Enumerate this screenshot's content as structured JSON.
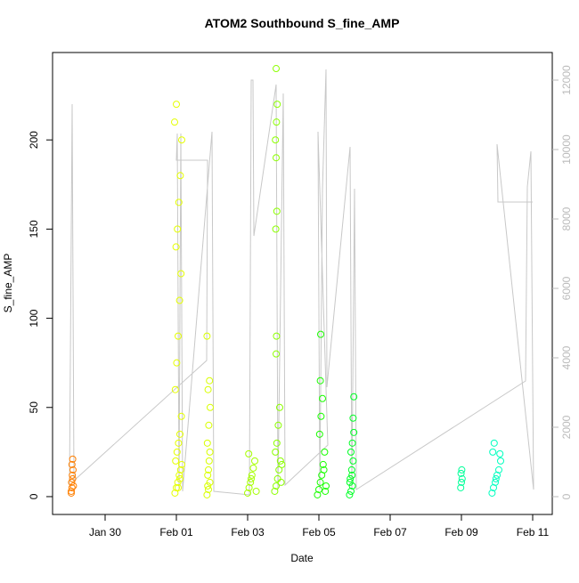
{
  "chart_data": {
    "type": "scatter",
    "title": "ATOM2 Southbound S_fine_AMP",
    "x_label": "Date",
    "y_label": "S_fine_AMP",
    "xlim": [
      28.525,
      42.55
    ],
    "ylim": [
      -10,
      249
    ],
    "y2lim": [
      -513,
      12795
    ],
    "xticks": [
      {
        "value": 30,
        "label": "Jan 30"
      },
      {
        "value": 32,
        "label": "Feb 01"
      },
      {
        "value": 34,
        "label": "Feb 03"
      },
      {
        "value": 36,
        "label": "Feb 05"
      },
      {
        "value": 38,
        "label": "Feb 07"
      },
      {
        "value": 40,
        "label": "Feb 09"
      },
      {
        "value": 42,
        "label": "Feb 11"
      }
    ],
    "yticks": [
      0,
      50,
      100,
      150,
      200
    ],
    "y2ticks": [
      0,
      2000,
      4000,
      6000,
      8000,
      10000,
      12000
    ],
    "grid": false,
    "series": [
      {
        "color": "#ff7f00",
        "x": [
          29.05,
          29.07,
          29.06,
          29.09,
          29.08,
          29.1,
          29.07,
          29.09,
          29.05,
          29.11
        ],
        "values": [
          3,
          5,
          8,
          10,
          12,
          15,
          18,
          21,
          2,
          6
        ]
      },
      {
        "color": "#e5ff00",
        "x": [
          31.96,
          32.0,
          32.04,
          32.08,
          32.12,
          31.98,
          32.02,
          32.06,
          32.1,
          32.14,
          31.97,
          32.01,
          32.05,
          32.09,
          32.13,
          31.99,
          32.03,
          32.07,
          32.11,
          32.15,
          31.95,
          32.0,
          32.05,
          32.1,
          32.15
        ],
        "values": [
          2,
          5,
          8,
          12,
          15,
          20,
          25,
          30,
          35,
          45,
          60,
          75,
          90,
          110,
          125,
          140,
          150,
          165,
          180,
          200,
          210,
          220,
          5,
          10,
          18
        ]
      },
      {
        "color": "#d9ff00",
        "x": [
          32.86,
          32.9,
          32.94,
          32.88,
          32.92,
          32.87,
          32.91,
          32.95,
          32.89,
          32.93,
          32.86,
          32.9,
          32.94,
          32.88
        ],
        "values": [
          1,
          4,
          8,
          12,
          20,
          30,
          40,
          50,
          60,
          65,
          90,
          15,
          25,
          6
        ]
      },
      {
        "color": "#a6ff00",
        "x": [
          34.0,
          34.04,
          34.08,
          34.12,
          34.16,
          34.2,
          34.03,
          34.1,
          34.24
        ],
        "values": [
          2,
          5,
          8,
          12,
          16,
          20,
          24,
          10,
          3
        ]
      },
      {
        "color": "#8cff00",
        "x": [
          34.76,
          34.8,
          34.84,
          34.88,
          34.92,
          34.78,
          34.82,
          34.86,
          34.9,
          34.8,
          34.81,
          34.79,
          34.82,
          34.8,
          34.78,
          34.81,
          34.83,
          34.8,
          34.94,
          34.96
        ],
        "values": [
          3,
          6,
          10,
          15,
          20,
          25,
          30,
          40,
          50,
          80,
          90,
          150,
          160,
          190,
          200,
          210,
          220,
          240,
          8,
          18
        ]
      },
      {
        "color": "#1aff00",
        "x": [
          35.96,
          36.0,
          36.04,
          36.08,
          36.12,
          36.16,
          36.02,
          36.06,
          36.1,
          36.04,
          36.05,
          36.14,
          36.2,
          36.18
        ],
        "values": [
          1,
          4,
          8,
          12,
          18,
          25,
          35,
          45,
          55,
          65,
          91,
          15,
          6,
          3
        ]
      },
      {
        "color": "#00ff26",
        "x": [
          36.86,
          36.9,
          36.94,
          36.88,
          36.92,
          36.96,
          36.9,
          36.94,
          36.98,
          36.96,
          36.98,
          36.87,
          36.93
        ],
        "values": [
          1,
          3,
          6,
          10,
          15,
          20,
          25,
          30,
          36,
          44,
          56,
          8,
          12
        ]
      },
      {
        "color": "#00ff99",
        "x": [
          39.98,
          40.0,
          40.02,
          39.99,
          40.01
        ],
        "values": [
          5,
          8,
          10,
          13,
          15
        ]
      },
      {
        "color": "#00ffbf",
        "x": [
          40.86,
          40.9,
          40.95,
          41.0,
          41.05,
          41.1,
          40.88,
          40.92,
          41.08,
          40.97
        ],
        "values": [
          2,
          5,
          8,
          12,
          15,
          20,
          25,
          30,
          24,
          10
        ]
      },
      {
        "type": "line",
        "axis": "y2",
        "color": "#c8c8c8",
        "x": [
          29.0,
          29.075,
          29.125,
          32.85,
          32.875,
          32.0,
          32.025,
          32.075,
          32.125,
          32.175,
          33.0,
          33.05,
          34.05,
          34.1,
          34.15,
          34.175,
          34.8,
          34.85,
          35.0,
          35.05,
          36.25,
          35.975,
          36.025,
          36.1,
          36.2,
          36.225,
          36.875,
          36.925,
          37.0,
          37.05,
          41.8,
          41.85,
          41.95,
          42.025,
          41.0,
          41.025,
          42.0
        ],
        "values": [
          333,
          11308,
          462,
          3923,
          9692,
          9692,
          10462,
          205,
          10462,
          154,
          10513,
          154,
          51,
          12000,
          12000,
          7513,
          11872,
          205,
          11615,
          333,
          1487,
          10513,
          205,
          8846,
          12308,
          3154,
          10077,
          205,
          8872,
          205,
          3333,
          8923,
          9949,
          205,
          10154,
          8487,
          8487
        ]
      }
    ]
  }
}
